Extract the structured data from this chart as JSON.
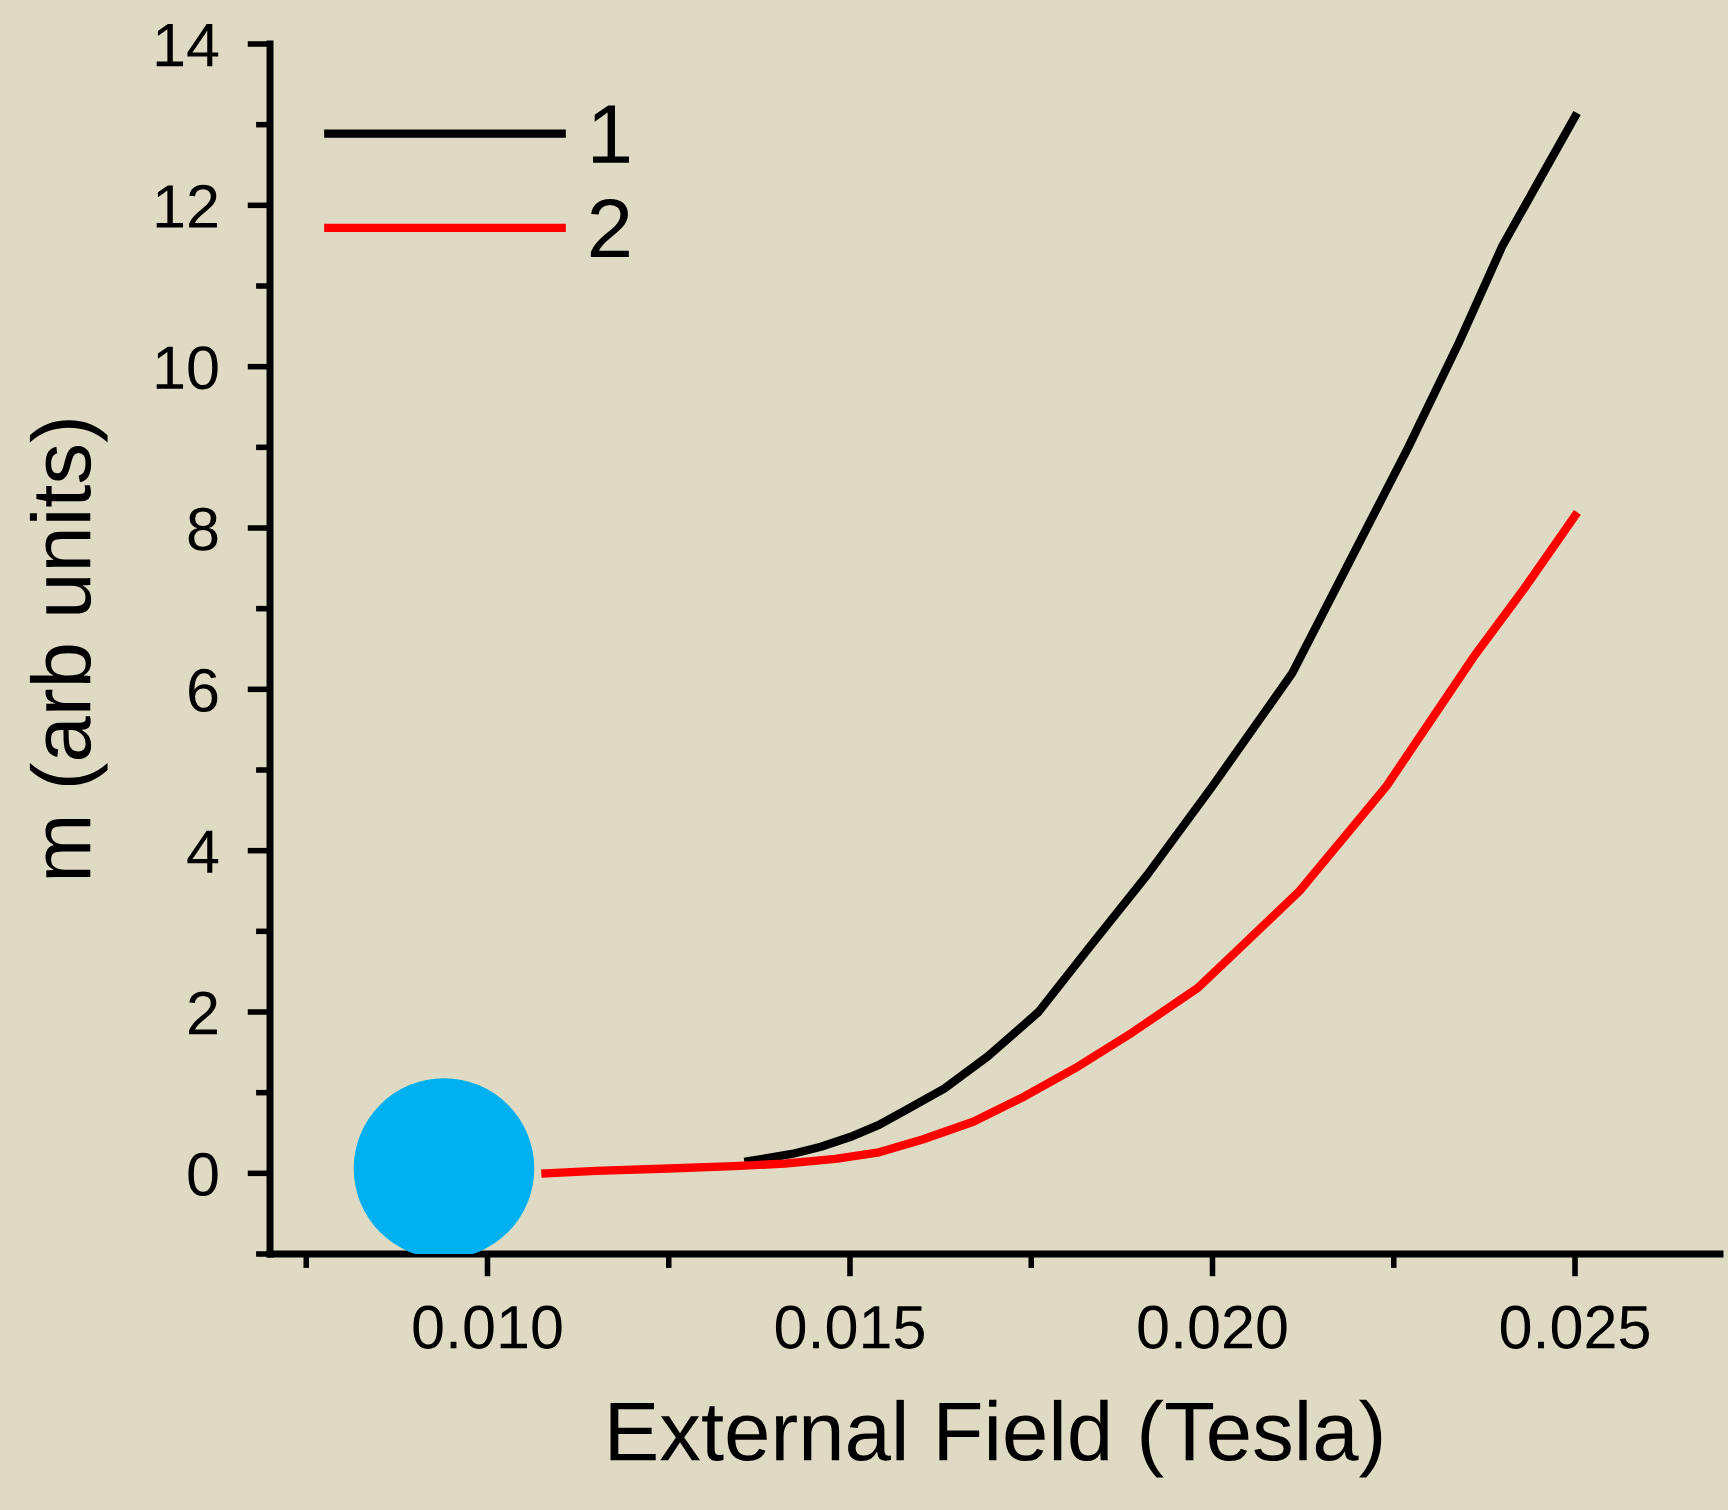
{
  "chart_data": {
    "type": "line",
    "xlabel": "External Field (Tesla)",
    "ylabel": "m (arb units)",
    "series": [
      {
        "name": "1",
        "color": "#000000",
        "x": [
          0.0136,
          0.0142,
          0.0146,
          0.015,
          0.0154,
          0.0158,
          0.0163,
          0.0169,
          0.0176,
          0.0183,
          0.0191,
          0.02,
          0.0211,
          0.0219,
          0.0227,
          0.0234,
          0.024,
          0.0245,
          0.025
        ],
        "values": [
          0.15,
          0.24,
          0.33,
          0.45,
          0.6,
          0.8,
          1.05,
          1.45,
          2.0,
          2.8,
          3.7,
          4.8,
          6.2,
          7.6,
          9.0,
          10.3,
          11.5,
          12.3,
          13.1
        ]
      },
      {
        "name": "2",
        "color": "#ff0000",
        "x": [
          0.0108,
          0.0115,
          0.0125,
          0.0134,
          0.0141,
          0.0148,
          0.0154,
          0.016,
          0.0167,
          0.0174,
          0.0181,
          0.0189,
          0.0198,
          0.0205,
          0.0212,
          0.0218,
          0.0224,
          0.023,
          0.0236,
          0.0243,
          0.025
        ],
        "values": [
          0.0,
          0.03,
          0.06,
          0.09,
          0.12,
          0.18,
          0.26,
          0.42,
          0.64,
          0.95,
          1.3,
          1.75,
          2.3,
          2.9,
          3.5,
          4.15,
          4.8,
          5.6,
          6.4,
          7.25,
          8.15
        ]
      },
      {
        "type": "scatter",
        "color": "#00b0f0",
        "x": [
          0.0094
        ],
        "values": [
          0.06
        ]
      }
    ],
    "xlim": [
      0.007,
      0.027
    ],
    "ylim": [
      -1,
      14
    ],
    "xticks": [
      {
        "value": 0.0075,
        "label": null
      },
      {
        "value": 0.01,
        "label": "0.010"
      },
      {
        "value": 0.0125,
        "label": null
      },
      0.015,
      {
        "value": 0.0175,
        "label": null
      },
      {
        "value": 0.02,
        "label": "0.020"
      },
      {
        "value": 0.0225,
        "label": null
      },
      0.025
    ],
    "yticks": [
      {
        "value": -1,
        "label": null
      },
      0,
      {
        "value": 1,
        "label": null
      },
      2,
      {
        "value": 3,
        "label": null
      },
      4,
      {
        "value": 5,
        "label": null
      },
      6,
      {
        "value": 7,
        "label": null
      },
      8,
      {
        "value": 9,
        "label": null
      },
      10,
      {
        "value": 11,
        "label": null
      },
      12,
      {
        "value": 13,
        "label": null
      },
      14
    ],
    "legend": "top left",
    "grid": false
  }
}
